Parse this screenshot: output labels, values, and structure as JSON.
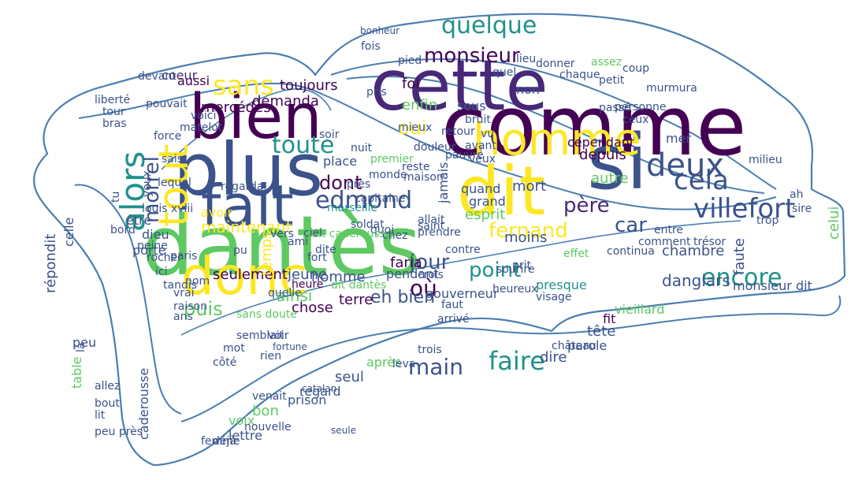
{
  "outline_color": "#4a7fb0",
  "colors": {
    "c1": "#440154",
    "c2": "#3b528b",
    "c3": "#21918c",
    "c4": "#5ec962",
    "c5": "#fde725",
    "c6": "#31688e",
    "c7": "#482878",
    "c8": "#35b779"
  },
  "words": [
    {
      "t": "comme",
      "c": "c1"
    },
    {
      "t": "cette",
      "c": "c7"
    },
    {
      "t": "si",
      "c": "c2"
    },
    {
      "t": "dit",
      "c": "c5"
    },
    {
      "t": "homme",
      "c": "c5"
    },
    {
      "t": "deux",
      "c": "c2"
    },
    {
      "t": "cela",
      "c": "c2"
    },
    {
      "t": "villefort",
      "c": "c2"
    },
    {
      "t": "quelque",
      "c": "c3"
    },
    {
      "t": "monsieur",
      "c": "c1"
    },
    {
      "t": "fernand",
      "c": "c5"
    },
    {
      "t": "père",
      "c": "c7"
    },
    {
      "t": "car",
      "c": "c2"
    },
    {
      "t": "encore",
      "c": "c3"
    },
    {
      "t": "bien",
      "c": "c1"
    },
    {
      "t": "plus",
      "c": "c2"
    },
    {
      "t": "fait",
      "c": "c2"
    },
    {
      "t": "dantès",
      "c": "c4"
    },
    {
      "t": "tout",
      "c": "c5"
    },
    {
      "t": "donc",
      "c": "c5"
    },
    {
      "t": "alors",
      "c": "c3"
    },
    {
      "t": "sans",
      "c": "c5"
    },
    {
      "t": "edmond",
      "c": "c2"
    },
    {
      "t": "toute",
      "c": "c3"
    },
    {
      "t": "morrel",
      "c": "c2"
    },
    {
      "t": "oui",
      "c": "c5"
    },
    {
      "t": "jour",
      "c": "c2"
    },
    {
      "t": "où",
      "c": "c1"
    },
    {
      "t": "point",
      "c": "c3"
    },
    {
      "t": "puis",
      "c": "c4"
    },
    {
      "t": "faire",
      "c": "c3"
    },
    {
      "t": "main",
      "c": "c2"
    },
    {
      "t": "dont",
      "c": "c1"
    },
    {
      "t": "danglars",
      "c": "c2"
    },
    {
      "t": "mercédès",
      "c": "c1"
    },
    {
      "t": "toujours",
      "c": "c1"
    },
    {
      "t": "demanda",
      "c": "c1"
    },
    {
      "t": "aussi",
      "c": "c1"
    },
    {
      "t": "coeur",
      "c": "c7"
    },
    {
      "t": "maintenant",
      "c": "c5"
    },
    {
      "t": "avoir",
      "c": "c5"
    },
    {
      "t": "ainsi",
      "c": "c4"
    },
    {
      "t": "jeune",
      "c": "c2"
    },
    {
      "t": "homme",
      "c": "c2"
    },
    {
      "t": "seulement",
      "c": "c1"
    },
    {
      "t": "eh bien",
      "c": "c2"
    },
    {
      "t": "chose",
      "c": "c1"
    },
    {
      "t": "terre",
      "c": "c1"
    },
    {
      "t": "depuis",
      "c": "c1"
    },
    {
      "t": "cependant",
      "c": "c1"
    },
    {
      "t": "mort",
      "c": "c2"
    },
    {
      "t": "autre",
      "c": "c4"
    },
    {
      "t": "esprit",
      "c": "c4"
    },
    {
      "t": "grand",
      "c": "c2"
    },
    {
      "t": "quand",
      "c": "c2"
    },
    {
      "t": "moins",
      "c": "c2"
    },
    {
      "t": "faria",
      "c": "c1"
    },
    {
      "t": "gouverneur",
      "c": "c2"
    },
    {
      "t": "presque",
      "c": "c3"
    },
    {
      "t": "vieillard",
      "c": "c4"
    },
    {
      "t": "monsieur dit",
      "c": "c2"
    },
    {
      "t": "enfin",
      "c": "c4"
    },
    {
      "t": "sous",
      "c": "c2"
    },
    {
      "t": "foi",
      "c": "c1"
    },
    {
      "t": "non",
      "c": "c2"
    },
    {
      "t": "fit",
      "c": "c1"
    },
    {
      "t": "tête",
      "c": "c2"
    },
    {
      "t": "parole",
      "c": "c2"
    },
    {
      "t": "dire",
      "c": "c2"
    },
    {
      "t": "après",
      "c": "c4"
    },
    {
      "t": "seul",
      "c": "c2"
    },
    {
      "t": "regard",
      "c": "c2"
    },
    {
      "t": "bon",
      "c": "c4"
    },
    {
      "t": "prison",
      "c": "c2"
    },
    {
      "t": "lettre",
      "c": "c2"
    },
    {
      "t": "voix",
      "c": "c4"
    },
    {
      "t": "déjà",
      "c": "c2"
    },
    {
      "t": "répondit",
      "c": "c2"
    },
    {
      "t": "porte",
      "c": "c2"
    },
    {
      "t": "être",
      "c": "c2"
    },
    {
      "t": "dieu",
      "c": "c2"
    },
    {
      "t": "yeux",
      "c": "c2"
    },
    {
      "t": "peu",
      "c": "c2"
    },
    {
      "t": "celle",
      "c": "c2"
    },
    {
      "t": "table",
      "c": "c4"
    },
    {
      "t": "caderousse",
      "c": "c2"
    },
    {
      "t": "venait",
      "c": "c2"
    },
    {
      "t": "nouvelle",
      "c": "c2"
    },
    {
      "t": "voir",
      "c": "c2"
    },
    {
      "t": "mot",
      "c": "c2"
    },
    {
      "t": "faute",
      "c": "c2"
    },
    {
      "t": "chambre",
      "c": "c2"
    },
    {
      "t": "sire",
      "c": "c2"
    },
    {
      "t": "celui",
      "c": "c4"
    },
    {
      "t": "trésor",
      "c": "c2"
    },
    {
      "t": "mer",
      "c": "c2"
    },
    {
      "t": "temps",
      "c": "c5"
    },
    {
      "t": "pendant",
      "c": "c2"
    },
    {
      "t": "crois",
      "c": "c2"
    },
    {
      "t": "fort",
      "c": "c2"
    },
    {
      "t": "heure",
      "c": "c1"
    },
    {
      "t": "quelle",
      "c": "c2"
    },
    {
      "t": "place",
      "c": "c2"
    },
    {
      "t": "capitaine",
      "c": "c2"
    },
    {
      "t": "près",
      "c": "c2"
    },
    {
      "t": "rien",
      "c": "c2"
    },
    {
      "t": "jamais",
      "c": "c2"
    },
    {
      "t": "pied",
      "c": "c2"
    },
    {
      "t": "lieu",
      "c": "c2"
    },
    {
      "t": "assez",
      "c": "c4"
    },
    {
      "t": "petit",
      "c": "c2"
    },
    {
      "t": "personne",
      "c": "c2"
    },
    {
      "t": "fois",
      "c": "c2"
    },
    {
      "t": "sais",
      "c": "c2"
    },
    {
      "t": "rocher",
      "c": "c2"
    },
    {
      "t": "ici",
      "c": "c2"
    },
    {
      "t": "peine",
      "c": "c2"
    },
    {
      "t": "tandis",
      "c": "c2"
    },
    {
      "t": "paris",
      "c": "c2"
    },
    {
      "t": "louis xviii",
      "c": "c2"
    },
    {
      "t": "lequel",
      "c": "c2"
    },
    {
      "t": "force",
      "c": "c2"
    },
    {
      "t": "matelot",
      "c": "c2"
    },
    {
      "t": "voici",
      "c": "c2"
    },
    {
      "t": "devant",
      "c": "c2"
    },
    {
      "t": "pouvait",
      "c": "c2"
    },
    {
      "t": "liberté",
      "c": "c2"
    },
    {
      "t": "tour",
      "c": "c2"
    },
    {
      "t": "bras",
      "c": "c2"
    },
    {
      "t": "tu",
      "c": "c2"
    },
    {
      "t": "là",
      "c": "c2"
    },
    {
      "t": "bord",
      "c": "c2"
    },
    {
      "t": "allez",
      "c": "c2"
    },
    {
      "t": "bout",
      "c": "c2"
    },
    {
      "t": "lit",
      "c": "c2"
    },
    {
      "t": "peu près",
      "c": "c2"
    },
    {
      "t": "femme",
      "c": "c2"
    },
    {
      "t": "côté",
      "c": "c2"
    },
    {
      "t": "semblait",
      "c": "c2"
    },
    {
      "t": "ans",
      "c": "c2"
    },
    {
      "t": "vrai",
      "c": "c2"
    },
    {
      "t": "raison",
      "c": "c2"
    },
    {
      "t": "nom",
      "c": "c2"
    },
    {
      "t": "leva",
      "c": "c2"
    },
    {
      "t": "trois",
      "c": "c2"
    },
    {
      "t": "château",
      "c": "c2"
    },
    {
      "t": "effet",
      "c": "c4"
    },
    {
      "t": "visage",
      "c": "c2"
    },
    {
      "t": "comment",
      "c": "c2"
    },
    {
      "t": "continua",
      "c": "c2"
    },
    {
      "t": "entre",
      "c": "c2"
    },
    {
      "t": "milieu",
      "c": "c2"
    },
    {
      "t": "trop",
      "c": "c2"
    },
    {
      "t": "ah",
      "c": "c2"
    },
    {
      "t": "veux",
      "c": "c2"
    },
    {
      "t": "avant",
      "c": "c2"
    },
    {
      "t": "vu",
      "c": "c2"
    },
    {
      "t": "chaque",
      "c": "c2"
    },
    {
      "t": "donner",
      "c": "c2"
    },
    {
      "t": "dite",
      "c": "c2"
    },
    {
      "t": "quoi",
      "c": "c2"
    },
    {
      "t": "saint",
      "c": "c2"
    },
    {
      "t": "marseille",
      "c": "c3"
    },
    {
      "t": "dit caderousse",
      "c": "c4"
    },
    {
      "t": "dit dantès",
      "c": "c4"
    },
    {
      "t": "faut",
      "c": "c2"
    },
    {
      "t": "chez",
      "c": "c2"
    },
    {
      "t": "soldat",
      "c": "c2"
    },
    {
      "t": "arrivé",
      "c": "c2"
    },
    {
      "t": "sourire",
      "c": "c2"
    },
    {
      "t": "contre",
      "c": "c2"
    },
    {
      "t": "prendre",
      "c": "c2"
    },
    {
      "t": "allait",
      "c": "c2"
    },
    {
      "t": "regarda",
      "c": "c2"
    },
    {
      "t": "prit",
      "c": "c2"
    },
    {
      "t": "heureux",
      "c": "c2"
    },
    {
      "t": "sans doute",
      "c": "c4"
    },
    {
      "t": "pu",
      "c": "c2"
    },
    {
      "t": "ciel",
      "c": "c2"
    },
    {
      "t": "ami",
      "c": "c2"
    },
    {
      "t": "vers",
      "c": "c2"
    },
    {
      "t": "soir",
      "c": "c2"
    },
    {
      "t": "mieux",
      "c": "c2"
    },
    {
      "t": "monde",
      "c": "c2"
    },
    {
      "t": "reste",
      "c": "c2"
    },
    {
      "t": "retour",
      "c": "c2"
    },
    {
      "t": "bruit",
      "c": "c2"
    },
    {
      "t": "douleur",
      "c": "c2"
    },
    {
      "t": "pauvre",
      "c": "c2"
    },
    {
      "t": "maison",
      "c": "c2"
    },
    {
      "t": "premier",
      "c": "c4"
    },
    {
      "t": "nuit",
      "c": "c2"
    },
    {
      "t": "quel",
      "c": "c2"
    },
    {
      "t": "murmura",
      "c": "c2"
    },
    {
      "t": "passé",
      "c": "c2"
    },
    {
      "t": "coup",
      "c": "c2"
    },
    {
      "t": "ceux",
      "c": "c2"
    },
    {
      "t": "pris",
      "c": "c2"
    },
    {
      "t": "fortune",
      "c": "c2"
    },
    {
      "t": "catalan",
      "c": "c2"
    },
    {
      "t": "seule",
      "c": "c2"
    },
    {
      "t": "bonheur",
      "c": "c2"
    }
  ]
}
